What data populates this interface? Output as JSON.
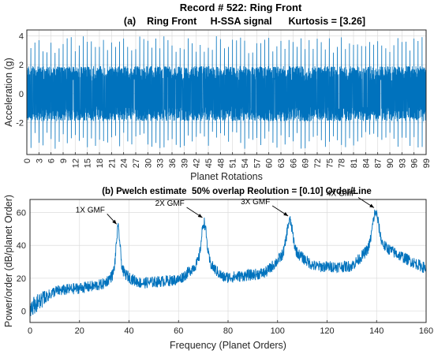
{
  "figure_title": "Record # 522: Ring Front",
  "chart_data": [
    {
      "type": "line",
      "title": "(a)    Ring Front     H-SSA signal      Kurtosis = [3.26]",
      "xlabel": "Planet Rotations",
      "ylabel": "Acceleration (g)",
      "xlim": [
        0,
        99
      ],
      "ylim": [
        -4.2,
        4.4
      ],
      "xticks": [
        0,
        3,
        6,
        9,
        12,
        15,
        18,
        21,
        24,
        27,
        30,
        33,
        36,
        39,
        42,
        45,
        48,
        51,
        54,
        57,
        60,
        63,
        66,
        69,
        72,
        75,
        78,
        81,
        84,
        87,
        90,
        93,
        96,
        99
      ],
      "yticks": [
        -2,
        0,
        2,
        4
      ],
      "grid": true,
      "color": "#0072BD",
      "series": [
        {
          "x_start": 0,
          "x_end": 99,
          "samples_per_rotation": 40,
          "noise_amplitude_g": 1.9,
          "impulses_per_rotation": 1,
          "impulse_peak_g_max": 4.0,
          "impulse_peak_g_min": -3.8
        }
      ]
    },
    {
      "type": "line",
      "title": "(b) Pwelch estimate  50% overlap Reolution = [0.10] Order/Line",
      "xlabel": "Frequency (Planet Orders)",
      "ylabel": "Power/order (dB/planet Order)",
      "xlim": [
        0,
        160
      ],
      "ylim": [
        -7,
        68
      ],
      "xticks": [
        0,
        20,
        40,
        60,
        80,
        100,
        120,
        140,
        160
      ],
      "yticks": [
        0,
        20,
        40,
        60
      ],
      "grid": true,
      "color": "#0072BD",
      "series": [
        {
          "resolution": 0.1,
          "baseline_points": [
            [
              0,
              2
            ],
            [
              5,
              7
            ],
            [
              10,
              12
            ],
            [
              20,
              14
            ],
            [
              30,
              16
            ],
            [
              36,
              21
            ],
            [
              45,
              17
            ],
            [
              60,
              19
            ],
            [
              70,
              28
            ],
            [
              78,
              20
            ],
            [
              95,
              23
            ],
            [
              105,
              34
            ],
            [
              115,
              27
            ],
            [
              130,
              27
            ],
            [
              140,
              38
            ],
            [
              150,
              33
            ],
            [
              160,
              26
            ]
          ],
          "peaks": [
            {
              "x": 35.6,
              "y": 50,
              "width": 1.1
            },
            {
              "x": 70.3,
              "y": 54,
              "width": 1.4
            },
            {
              "x": 104.9,
              "y": 55,
              "width": 1.6
            },
            {
              "x": 139.6,
              "y": 60,
              "width": 1.7
            }
          ],
          "noise_amplitude_db": 3.5
        }
      ],
      "annotations": [
        {
          "text": "1X GMF",
          "x": 35.6,
          "y": 51
        },
        {
          "text": "2X GMF",
          "x": 70.3,
          "y": 55
        },
        {
          "text": "3X GMF",
          "x": 104.9,
          "y": 56
        },
        {
          "text": "4X GMF",
          "x": 139.6,
          "y": 61
        }
      ]
    }
  ]
}
